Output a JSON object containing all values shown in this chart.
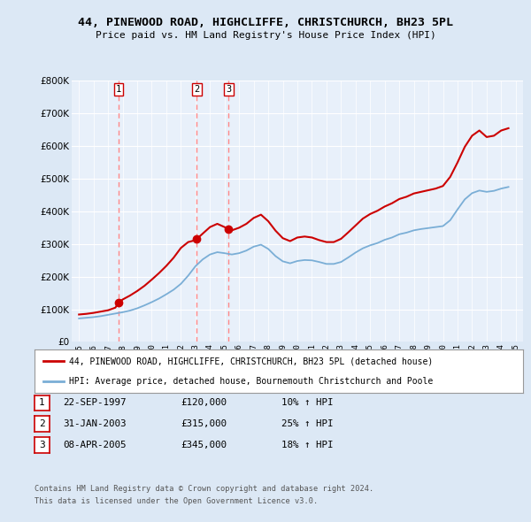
{
  "title": "44, PINEWOOD ROAD, HIGHCLIFFE, CHRISTCHURCH, BH23 5PL",
  "subtitle": "Price paid vs. HM Land Registry's House Price Index (HPI)",
  "background_color": "#dce8f5",
  "plot_bg_color": "#e8f0fa",
  "red_line_label": "44, PINEWOOD ROAD, HIGHCLIFFE, CHRISTCHURCH, BH23 5PL (detached house)",
  "blue_line_label": "HPI: Average price, detached house, Bournemouth Christchurch and Poole",
  "transactions": [
    {
      "num": 1,
      "date": "22-SEP-1997",
      "price": "£120,000",
      "hpi_change": "10% ↑ HPI",
      "x_year": 1997.72,
      "y_val": 120000
    },
    {
      "num": 2,
      "date": "31-JAN-2003",
      "price": "£315,000",
      "hpi_change": "25% ↑ HPI",
      "x_year": 2003.08,
      "y_val": 315000
    },
    {
      "num": 3,
      "date": "08-APR-2005",
      "price": "£345,000",
      "hpi_change": "18% ↑ HPI",
      "x_year": 2005.27,
      "y_val": 345000
    }
  ],
  "footer_line1": "Contains HM Land Registry data © Crown copyright and database right 2024.",
  "footer_line2": "This data is licensed under the Open Government Licence v3.0.",
  "ylim": [
    0,
    800000
  ],
  "yticks": [
    0,
    100000,
    200000,
    300000,
    400000,
    500000,
    600000,
    700000,
    800000
  ],
  "xlim_start": 1994.5,
  "xlim_end": 2025.5,
  "red_color": "#cc0000",
  "blue_color": "#7aaed6",
  "dashed_color": "#ff8888",
  "years_hpi": [
    1995.0,
    1995.5,
    1996.0,
    1996.5,
    1997.0,
    1997.5,
    1998.0,
    1998.5,
    1999.0,
    1999.5,
    2000.0,
    2000.5,
    2001.0,
    2001.5,
    2002.0,
    2002.5,
    2003.0,
    2003.5,
    2004.0,
    2004.5,
    2005.0,
    2005.5,
    2006.0,
    2006.5,
    2007.0,
    2007.5,
    2008.0,
    2008.5,
    2009.0,
    2009.5,
    2010.0,
    2010.5,
    2011.0,
    2011.5,
    2012.0,
    2012.5,
    2013.0,
    2013.5,
    2014.0,
    2014.5,
    2015.0,
    2015.5,
    2016.0,
    2016.5,
    2017.0,
    2017.5,
    2018.0,
    2018.5,
    2019.0,
    2019.5,
    2020.0,
    2020.5,
    2021.0,
    2021.5,
    2022.0,
    2022.5,
    2023.0,
    2023.5,
    2024.0,
    2024.5
  ],
  "hpi_values": [
    72000,
    74000,
    76000,
    79000,
    83000,
    87000,
    91000,
    96000,
    103000,
    112000,
    122000,
    133000,
    146000,
    160000,
    178000,
    203000,
    232000,
    253000,
    268000,
    275000,
    272000,
    268000,
    272000,
    280000,
    292000,
    298000,
    285000,
    263000,
    247000,
    241000,
    248000,
    251000,
    250000,
    245000,
    239000,
    239000,
    245000,
    259000,
    274000,
    287000,
    296000,
    303000,
    313000,
    320000,
    330000,
    335000,
    342000,
    346000,
    349000,
    352000,
    355000,
    373000,
    406000,
    437000,
    456000,
    464000,
    460000,
    463000,
    470000,
    475000
  ],
  "years_red": [
    1995.0,
    1995.5,
    1996.0,
    1996.5,
    1997.0,
    1997.5,
    1997.72,
    1998.0,
    1998.5,
    1999.0,
    1999.5,
    2000.0,
    2000.5,
    2001.0,
    2001.5,
    2002.0,
    2002.5,
    2003.0,
    2003.08,
    2003.5,
    2004.0,
    2004.5,
    2005.0,
    2005.27,
    2005.5,
    2006.0,
    2006.5,
    2007.0,
    2007.5,
    2008.0,
    2008.5,
    2009.0,
    2009.5,
    2010.0,
    2010.5,
    2011.0,
    2011.5,
    2012.0,
    2012.5,
    2013.0,
    2013.5,
    2014.0,
    2014.5,
    2015.0,
    2015.5,
    2016.0,
    2016.5,
    2017.0,
    2017.5,
    2018.0,
    2018.5,
    2019.0,
    2019.5,
    2020.0,
    2020.5,
    2021.0,
    2021.5,
    2022.0,
    2022.5,
    2023.0,
    2023.5,
    2024.0,
    2024.5
  ],
  "red_values": [
    84000,
    86000,
    89000,
    93000,
    97000,
    105000,
    120000,
    130000,
    142000,
    156000,
    172000,
    191000,
    211000,
    233000,
    258000,
    288000,
    306000,
    312000,
    315000,
    332000,
    352000,
    362000,
    352000,
    345000,
    342000,
    350000,
    362000,
    380000,
    390000,
    370000,
    341000,
    318000,
    309000,
    320000,
    323000,
    320000,
    312000,
    306000,
    306000,
    316000,
    336000,
    357000,
    378000,
    392000,
    402000,
    415000,
    425000,
    438000,
    445000,
    455000,
    460000,
    465000,
    470000,
    478000,
    506000,
    550000,
    598000,
    632000,
    648000,
    628000,
    632000,
    648000,
    655000
  ]
}
